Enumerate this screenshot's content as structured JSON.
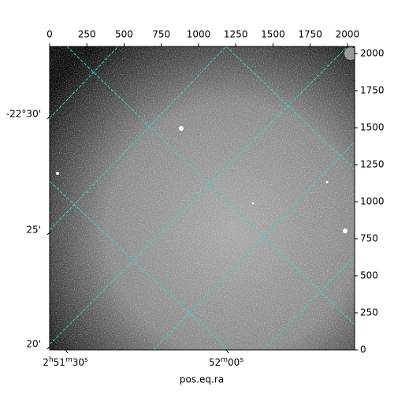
{
  "chart_data": {
    "type": "image",
    "xlabel": "pos.eq.ra",
    "xlim": [
      0,
      2048
    ],
    "ylim": [
      0,
      2048
    ],
    "xticks": [
      0,
      250,
      500,
      750,
      1000,
      1250,
      1500,
      1750,
      2000
    ],
    "yticks": [
      0,
      250,
      500,
      750,
      1000,
      1250,
      1500,
      1750,
      2000
    ],
    "dec_ticks": [
      "-22°30'",
      "25'",
      "20'"
    ],
    "ra_ticks": [
      "2h51m30s",
      "52m00s"
    ],
    "grid_color": "#3fd0d0"
  }
}
